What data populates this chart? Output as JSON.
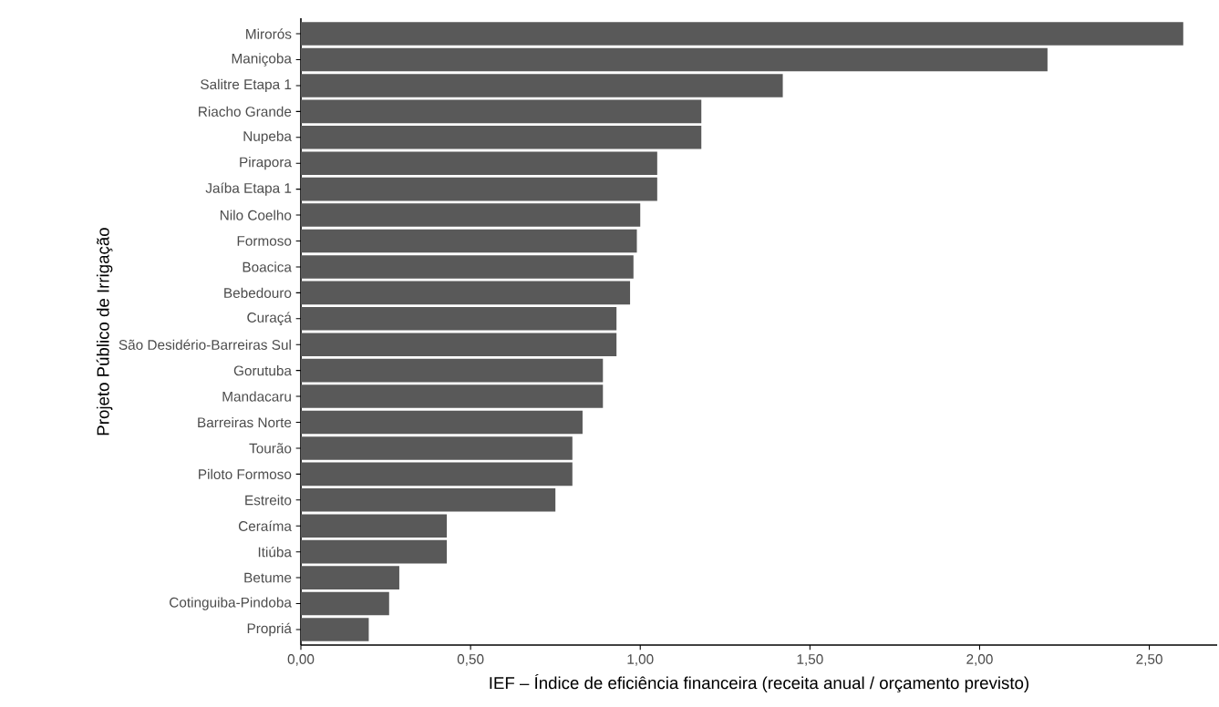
{
  "chart_data": {
    "type": "bar",
    "orientation": "horizontal",
    "xlabel": "IEF – Índice de eficiência financeira (receita anual / orçamento previsto)",
    "ylabel": "Projeto Público de Irrigação",
    "categories": [
      "Mirorós",
      "Maniçoba",
      "Salitre Etapa 1",
      "Riacho Grande",
      "Nupeba",
      "Pirapora",
      "Jaíba Etapa 1",
      "Nilo Coelho",
      "Formoso",
      "Boacica",
      "Bebedouro",
      "Curaçá",
      "São Desidério-Barreiras Sul",
      "Gorutuba",
      "Mandacaru",
      "Barreiras Norte",
      "Tourão",
      "Piloto Formoso",
      "Estreito",
      "Ceraíma",
      "Itiúba",
      "Betume",
      "Cotinguiba-Pindoba",
      "Propriá"
    ],
    "values": [
      2.6,
      2.2,
      1.42,
      1.18,
      1.18,
      1.05,
      1.05,
      1.0,
      0.99,
      0.98,
      0.97,
      0.93,
      0.93,
      0.89,
      0.89,
      0.83,
      0.8,
      0.8,
      0.75,
      0.43,
      0.43,
      0.29,
      0.26,
      0.2
    ],
    "color": "#595959",
    "xlim": [
      0,
      2.7
    ],
    "xticks": [
      {
        "value": 0,
        "label": "0,00"
      },
      {
        "value": 0.5,
        "label": "0,50"
      },
      {
        "value": 1.0,
        "label": "1,00"
      },
      {
        "value": 1.5,
        "label": "1,50"
      },
      {
        "value": 2.0,
        "label": "2,00"
      },
      {
        "value": 2.5,
        "label": "2,50"
      }
    ],
    "grid": false
  }
}
